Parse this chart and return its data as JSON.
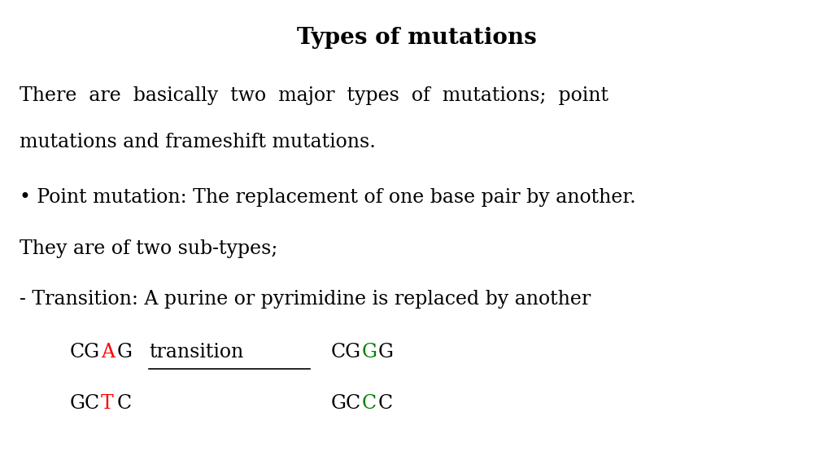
{
  "title": "Types of mutations",
  "background_color": "#ffffff",
  "text_color": "#000000",
  "red_color": "#ff0000",
  "green_color": "#008000",
  "figsize": [
    10.24,
    5.76
  ],
  "dpi": 100,
  "title_fontsize": 20,
  "body_fontsize": 17,
  "font_family": "DejaVu Serif",
  "line1_para1": "There  are  basically  two  major  types  of  mutations;  point",
  "line2_para1": "mutations and frameshift mutations.",
  "bullet_line": "• Point mutation: The replacement of one base pair by another.",
  "subtypes_line": "They are of two sub-types;",
  "transition_line": "- Transition: A purine or pyrimidine is replaced by another"
}
